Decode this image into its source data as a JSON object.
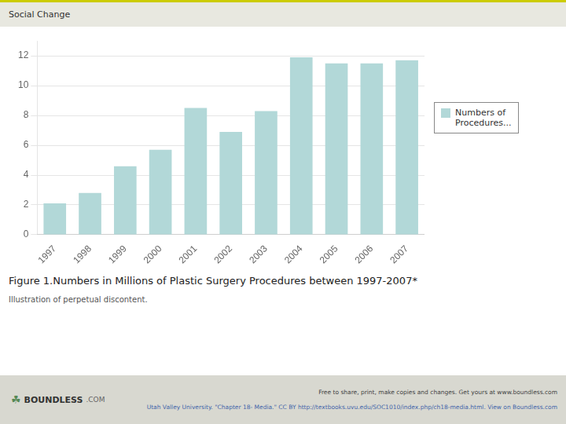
{
  "chart_data": {
    "type": "bar",
    "title": "Figure 1.Numbers in Millions of Plastic Surgery Procedures between 1997-2007*",
    "subtitle": "Illustration of perpetual discontent.",
    "categories": [
      "1997",
      "1998",
      "1999",
      "2000",
      "2001",
      "2002",
      "2003",
      "2004",
      "2005",
      "2006",
      "2007"
    ],
    "series": [
      {
        "name": "Numbers of\nProcedures...",
        "color": "#b2d8d8",
        "values": [
          2.1,
          2.8,
          4.6,
          5.7,
          8.5,
          6.9,
          8.3,
          11.9,
          11.5,
          11.5,
          11.7
        ]
      }
    ],
    "ylim": [
      0,
      13
    ],
    "yticks": [
      0,
      2,
      4,
      6,
      8,
      10,
      12
    ],
    "grid": true,
    "legend": "right",
    "annotations": [
      "Social Change",
      "☘",
      "BOUNDLESS",
      ".COM",
      "Free to share, print, make copies and changes. Get yours at www.boundless.com",
      "Utah Valley University. \"Chapter 18- Media.\" CC BY http://textbooks.uvu.edu/SOC1010/index.php/ch18-media.html. View on Boundless.com"
    ]
  }
}
